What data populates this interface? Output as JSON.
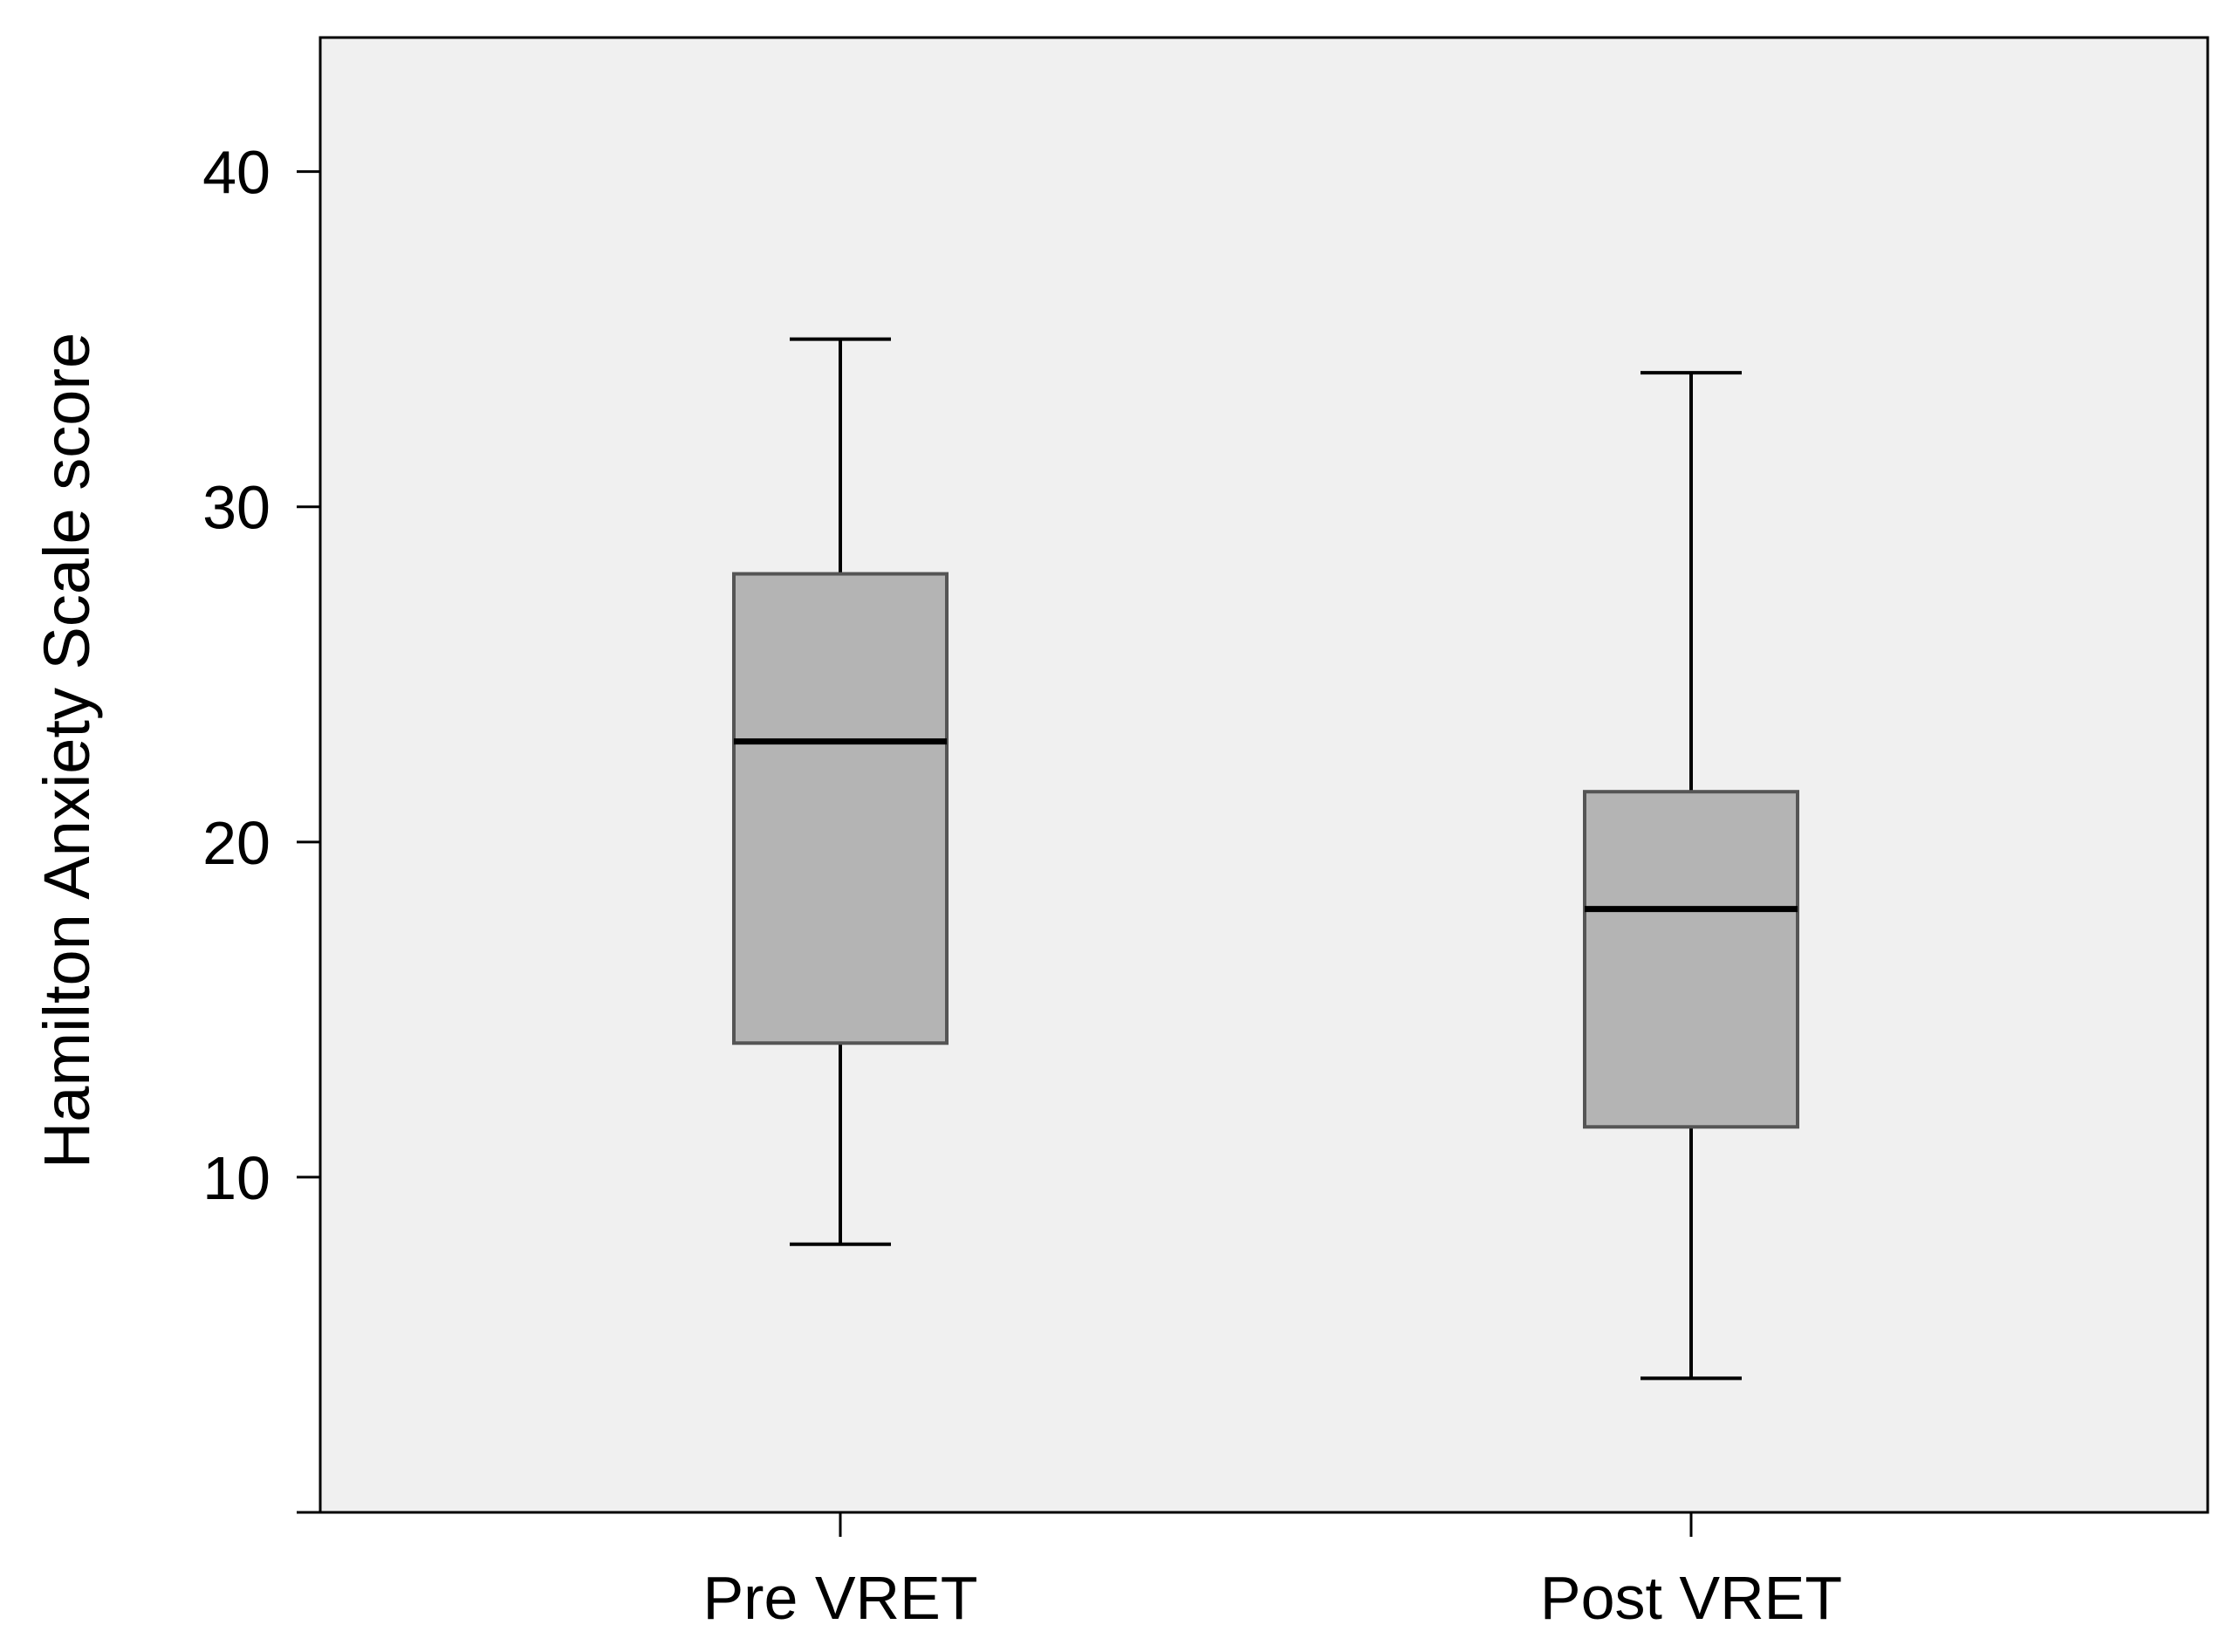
{
  "colors": {
    "plot_background": "#f0f0f0",
    "box_fill": "#b4b4b4",
    "box_stroke": "#555555",
    "line": "#000000",
    "page_background": "#ffffff"
  },
  "chart_data": {
    "type": "boxplot",
    "title": "",
    "xlabel": "",
    "ylabel": "Hamilton Anxiety Scale score",
    "ylim": [
      0,
      44
    ],
    "yticks": [
      10,
      20,
      30,
      40
    ],
    "ytick_labels": [
      "10",
      "20",
      "30",
      "40"
    ],
    "grid": false,
    "legend": "none",
    "categories": [
      "Pre VRET",
      "Post VRET"
    ],
    "series": [
      {
        "name": "Pre VRET",
        "whisker_low": 8,
        "q1": 14,
        "median": 23,
        "q3": 28,
        "whisker_high": 35
      },
      {
        "name": "Post VRET",
        "whisker_low": 4,
        "q1": 11.5,
        "median": 18,
        "q3": 21.5,
        "whisker_high": 34
      }
    ]
  }
}
